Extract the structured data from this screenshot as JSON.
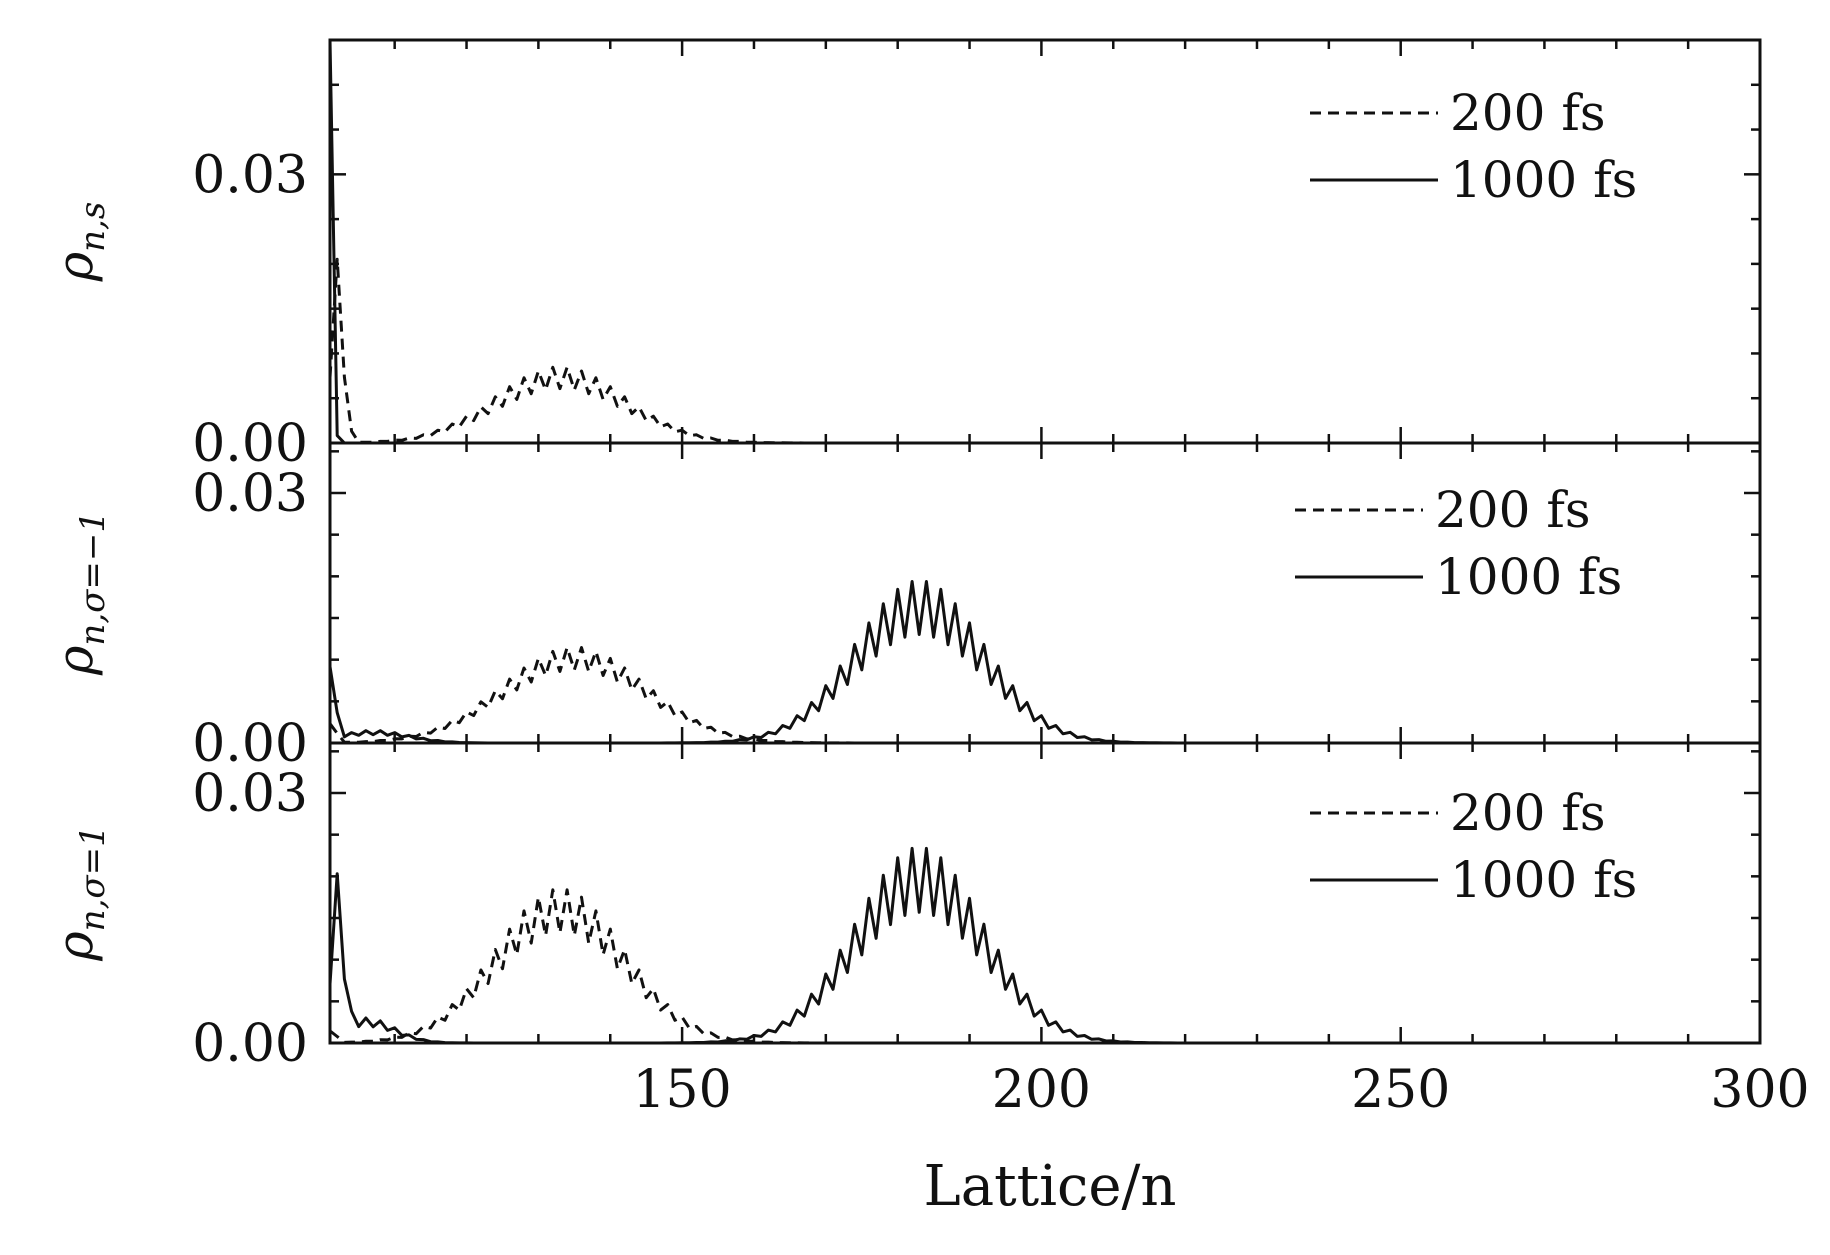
{
  "chart_data": {
    "type": "line",
    "xlabel": "Lattice/n",
    "xlim": [
      101,
      300
    ],
    "xticks": [
      150,
      200,
      250,
      300
    ],
    "xtick_labels": [
      "150",
      "200",
      "250",
      "300"
    ],
    "panels": [
      {
        "id": "s",
        "ylabel": "ρn,s",
        "ylabel_main": "ρ",
        "ylabel_sub": "n,s",
        "ylim": [
          0,
          0.045
        ],
        "yticks": [
          0.0,
          0.03
        ],
        "ytick_labels": [
          "0.00",
          "0.03"
        ],
        "legend": [
          "200 fs",
          "1000 fs"
        ],
        "series": [
          {
            "name": "200 fs",
            "style": "dashed",
            "edge_peak": {
              "x": 102,
              "y": 0.0205,
              "width": 1.2
            },
            "bumps": [
              {
                "center": 133,
                "amplitude": 0.0085,
                "sigma": 9
              }
            ],
            "oscillation": 0.3
          },
          {
            "name": "1000 fs",
            "style": "solid",
            "edge_peak": {
              "x": 101,
              "y": 0.045,
              "width": 0.5
            },
            "bumps": [],
            "oscillation": 0
          }
        ]
      },
      {
        "id": "sigma_minus1",
        "ylabel": "ρn,σ=−1",
        "ylabel_main": "ρ",
        "ylabel_sub": "n,σ=−1",
        "ylim": [
          0,
          0.036
        ],
        "yticks": [
          0.0,
          0.03
        ],
        "ytick_labels": [
          "0.00",
          "0.03"
        ],
        "legend": [
          "200 fs",
          "1000 fs"
        ],
        "series": [
          {
            "name": "200 fs",
            "style": "dashed",
            "edge_peak": {
              "x": 101,
              "y": 0.003,
              "width": 1
            },
            "bumps": [
              {
                "center": 135,
                "amplitude": 0.0115,
                "sigma": 10
              }
            ],
            "oscillation": 0.25
          },
          {
            "name": "1000 fs",
            "style": "solid",
            "edge_peak": {
              "x": 101,
              "y": 0.013,
              "width": 0.8
            },
            "bumps": [
              {
                "center": 183,
                "amplitude": 0.0195,
                "sigma": 9
              },
              {
                "center": 107,
                "amplitude": 0.0015,
                "sigma": 5
              }
            ],
            "oscillation": 0.35
          }
        ]
      },
      {
        "id": "sigma_plus1",
        "ylabel": "ρn,σ=1",
        "ylabel_main": "ρ",
        "ylabel_sub": "n,σ=1",
        "ylim": [
          0,
          0.036
        ],
        "yticks": [
          0.0,
          0.03
        ],
        "ytick_labels": [
          "0.00",
          "0.03"
        ],
        "legend": [
          "200 fs",
          "1000 fs"
        ],
        "series": [
          {
            "name": "200 fs",
            "style": "dashed",
            "edge_peak": {
              "x": 101,
              "y": 0.002,
              "width": 1
            },
            "bumps": [
              {
                "center": 133,
                "amplitude": 0.0185,
                "sigma": 9
              }
            ],
            "oscillation": 0.3
          },
          {
            "name": "1000 fs",
            "style": "solid",
            "edge_peak": {
              "x": 102,
              "y": 0.0185,
              "width": 1.2
            },
            "bumps": [
              {
                "center": 183,
                "amplitude": 0.0235,
                "sigma": 9
              },
              {
                "center": 106,
                "amplitude": 0.003,
                "sigma": 4
              }
            ],
            "oscillation": 0.35
          }
        ]
      }
    ]
  }
}
